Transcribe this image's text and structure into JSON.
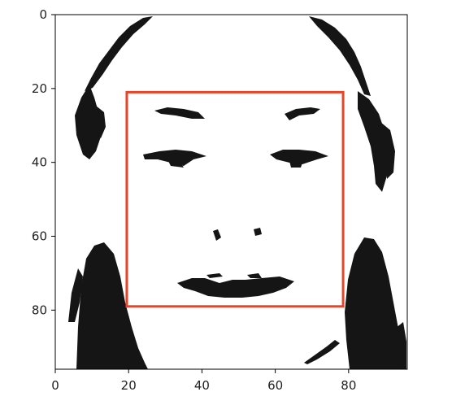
{
  "image": {
    "subject": "high-contrast binarized face",
    "extent": [
      0,
      96,
      0,
      96
    ]
  },
  "axes": {
    "x_ticks": [
      0,
      20,
      40,
      60,
      80
    ],
    "y_ticks": [
      0,
      20,
      40,
      60,
      80
    ],
    "x_tick_labels": [
      "0",
      "20",
      "40",
      "60",
      "80"
    ],
    "y_tick_labels": [
      "0",
      "20",
      "40",
      "60",
      "80"
    ]
  },
  "detection_box": {
    "x0": 19.5,
    "y0": 21,
    "x1": 78.5,
    "y1": 79,
    "color": "#e8442a"
  },
  "colors": {
    "ink": "#151515",
    "frame": "#000000",
    "box": "#e8442a"
  }
}
